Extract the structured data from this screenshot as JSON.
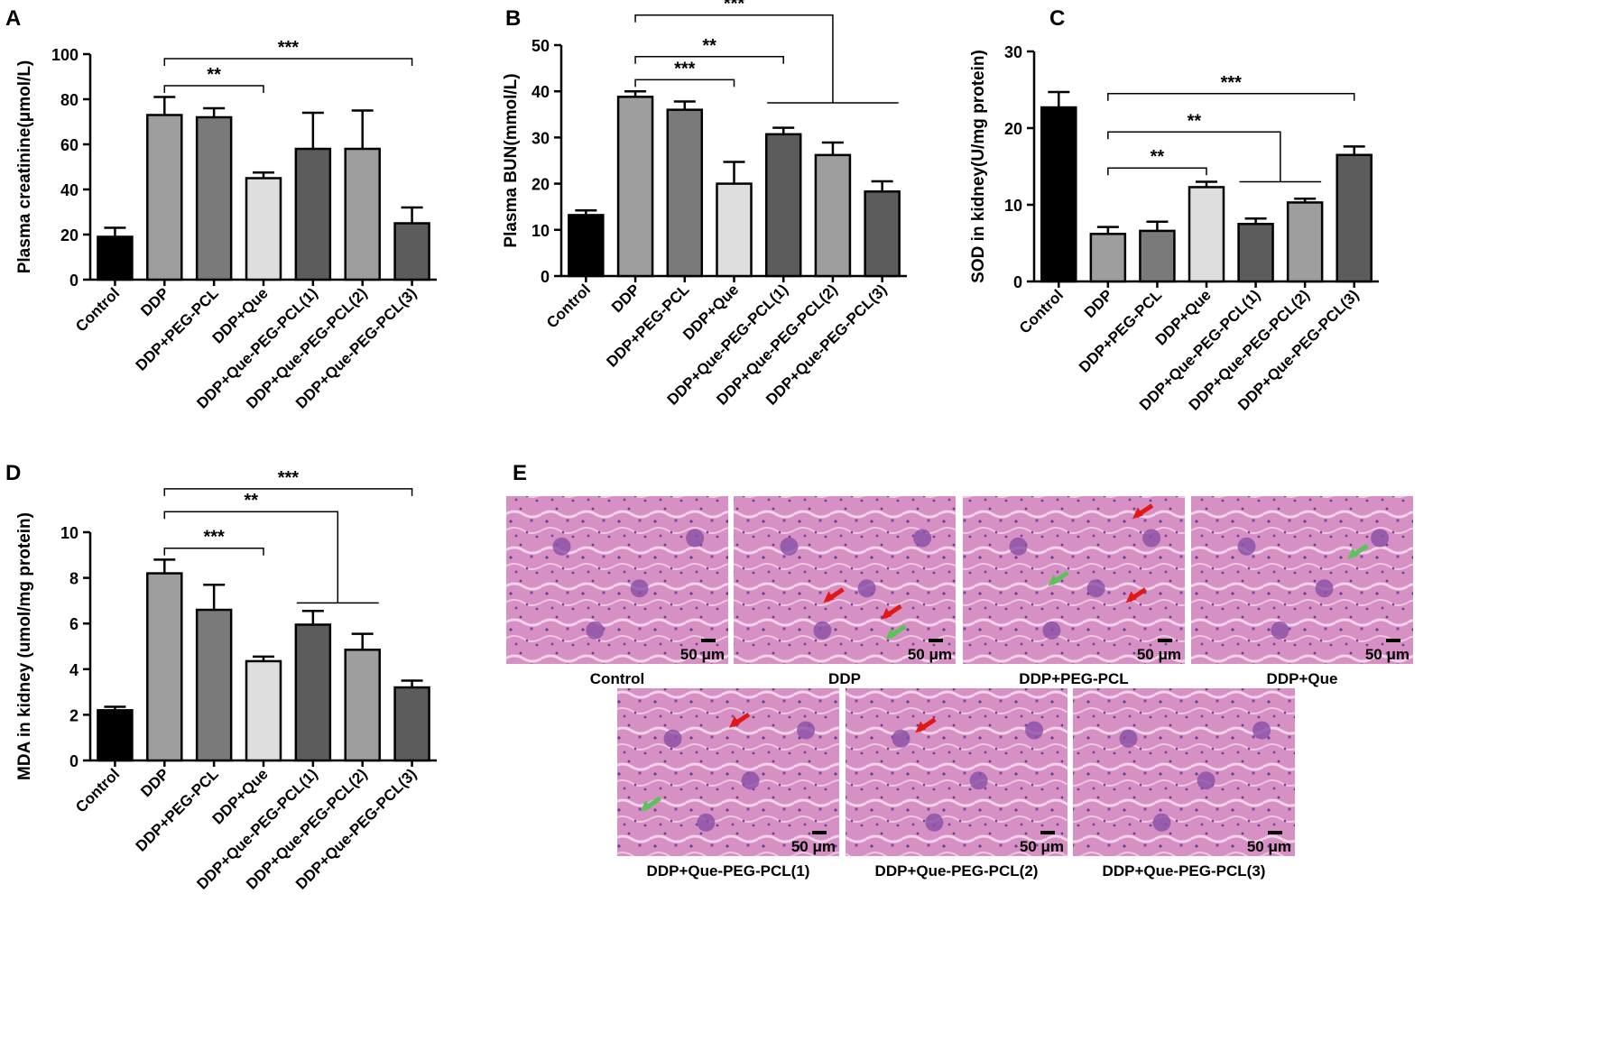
{
  "panels": {
    "A": "A",
    "B": "B",
    "C": "C",
    "D": "D",
    "E": "E"
  },
  "chart_data": [
    {
      "id": "A",
      "type": "bar",
      "ylabel": "Plasma creatinine(μmol/L)",
      "ylim": [
        0,
        100
      ],
      "yticks": [
        0,
        20,
        40,
        60,
        80,
        100
      ],
      "categories": [
        "Control",
        "DDP",
        "DDP+PEG-PCL",
        "DDP+Que",
        "DDP+Que-PEG-PCL(1)",
        "DDP+Que-PEG-PCL(2)",
        "DDP+Que-PEG-PCL(3)"
      ],
      "values": [
        19,
        73,
        72,
        45,
        58,
        58,
        25
      ],
      "errors": [
        4,
        8,
        4,
        2.5,
        16,
        17,
        7
      ],
      "colors": [
        "#000000",
        "#9e9e9e",
        "#7a7a7a",
        "#dedede",
        "#5c5c5c",
        "#9e9e9e",
        "#5c5c5c"
      ],
      "annotations": [
        {
          "label": "***",
          "from": 1,
          "to": 6,
          "y": 98
        },
        {
          "label": "**",
          "from": 1,
          "to": 3,
          "y": 86
        }
      ]
    },
    {
      "id": "B",
      "type": "bar",
      "ylabel": "Plasma BUN(mmol/L)",
      "ylim": [
        0,
        50
      ],
      "yticks": [
        0,
        10,
        20,
        30,
        40,
        50
      ],
      "categories": [
        "Control",
        "DDP",
        "DDP+PEG-PCL",
        "DDP+Que",
        "DDP+Que-PEG-PCL(1)",
        "DDP+Que-PEG-PCL(2)",
        "DDP+Que-PEG-PCL(3)"
      ],
      "values": [
        13.2,
        38.8,
        36,
        20,
        30.7,
        26.2,
        18.3
      ],
      "errors": [
        1,
        1.2,
        1.8,
        4.7,
        1.4,
        2.7,
        2.2
      ],
      "colors": [
        "#000000",
        "#9e9e9e",
        "#7a7a7a",
        "#dedede",
        "#5c5c5c",
        "#9e9e9e",
        "#5c5c5c"
      ],
      "annotations": [
        {
          "label": "***",
          "from": 1,
          "to": 3,
          "y": 42.5
        },
        {
          "label": "**",
          "from": 1,
          "to": 4,
          "y": 47.5
        }
      ],
      "group_annotation": {
        "label": "***",
        "from": 1,
        "group_from": 4,
        "group_to": 6,
        "y": 56.5,
        "ystem": 37.5
      }
    },
    {
      "id": "C",
      "type": "bar",
      "ylabel": "SOD in kidney(U/mg protein)",
      "ylim": [
        0,
        30
      ],
      "yticks": [
        0,
        10,
        20,
        30
      ],
      "categories": [
        "Control",
        "DDP",
        "DDP+PEG-PCL",
        "DDP+Que",
        "DDP+Que-PEG-PCL(1)",
        "DDP+Que-PEG-PCL(2)",
        "DDP+Que-PEG-PCL(3)"
      ],
      "values": [
        22.7,
        6.2,
        6.6,
        12.3,
        7.5,
        10.3,
        16.5
      ],
      "errors": [
        2,
        0.9,
        1.2,
        0.7,
        0.7,
        0.5,
        1.1
      ],
      "colors": [
        "#000000",
        "#9e9e9e",
        "#7a7a7a",
        "#dedede",
        "#5c5c5c",
        "#9e9e9e",
        "#5c5c5c"
      ],
      "annotations": [
        {
          "label": "***",
          "from": 1,
          "to": 6,
          "y": 24.5
        },
        {
          "label": "**",
          "from": 1,
          "to": 3,
          "y": 14.8
        }
      ],
      "group_annotation": {
        "label": "**",
        "from": 1,
        "group_from": 4,
        "group_to": 5,
        "y": 19.5,
        "ystem": 13
      }
    },
    {
      "id": "D",
      "type": "bar",
      "ylabel": "MDA in kidney (umol/mg protein)",
      "ylim": [
        0,
        10
      ],
      "yticks": [
        0,
        2,
        4,
        6,
        8,
        10
      ],
      "categories": [
        "Control",
        "DDP",
        "DDP+PEG-PCL",
        "DDP+Que",
        "DDP+Que-PEG-PCL(1)",
        "DDP+Que-PEG-PCL(2)",
        "DDP+Que-PEG-PCL(3)"
      ],
      "values": [
        2.2,
        8.2,
        6.6,
        4.35,
        5.95,
        4.85,
        3.2
      ],
      "errors": [
        0.15,
        0.6,
        1.1,
        0.2,
        0.6,
        0.7,
        0.3
      ],
      "colors": [
        "#000000",
        "#9e9e9e",
        "#7a7a7a",
        "#dedede",
        "#5c5c5c",
        "#9e9e9e",
        "#5c5c5c"
      ],
      "annotations": [
        {
          "label": "***",
          "from": 1,
          "to": 6,
          "y": 11.9
        },
        {
          "label": "***",
          "from": 1,
          "to": 3,
          "y": 9.3
        }
      ],
      "group_annotation": {
        "label": "**",
        "from": 1,
        "group_from": 4,
        "group_to": 5,
        "y": 10.9,
        "ystem": 6.9
      }
    }
  ],
  "histology": {
    "scale_bar": "50 μm",
    "images": [
      {
        "label": "Control",
        "red_arrows": 0,
        "green_arrows": 0
      },
      {
        "label": "DDP",
        "red_arrows": 2,
        "green_arrows": 1
      },
      {
        "label": "DDP+PEG-PCL",
        "red_arrows": 2,
        "green_arrows": 1
      },
      {
        "label": "DDP+Que",
        "red_arrows": 0,
        "green_arrows": 1
      },
      {
        "label": "DDP+Que-PEG-PCL(1)",
        "red_arrows": 1,
        "green_arrows": 1
      },
      {
        "label": "DDP+Que-PEG-PCL(2)",
        "red_arrows": 1,
        "green_arrows": 0
      },
      {
        "label": "DDP+Que-PEG-PCL(3)",
        "red_arrows": 0,
        "green_arrows": 0
      }
    ]
  }
}
